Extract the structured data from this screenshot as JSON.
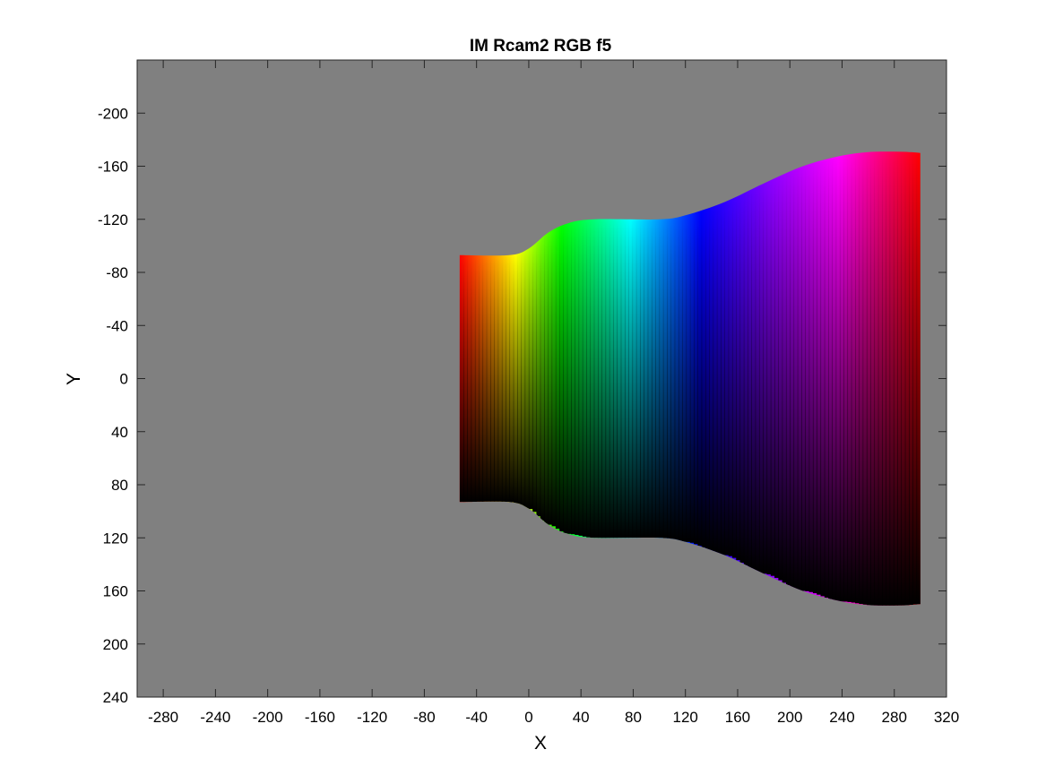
{
  "chart_data": {
    "type": "heatmap",
    "title": "IM Rcam2 RGB f5",
    "xlabel": "X",
    "ylabel": "Y",
    "xlim": [
      -300,
      320
    ],
    "ylim": [
      240,
      -240
    ],
    "y_axis_reversed": true,
    "background_color": "#808080",
    "x_ticks": [
      -280,
      -240,
      -200,
      -160,
      -120,
      -80,
      -40,
      0,
      40,
      80,
      120,
      160,
      200,
      240,
      280,
      320
    ],
    "x_tick_labels": [
      "-280",
      "-240",
      "-200",
      "-160",
      "-120",
      "-80",
      "-40",
      "0",
      "40",
      "80",
      "120",
      "160",
      "200",
      "240",
      "280",
      "320"
    ],
    "y_ticks": [
      -200,
      -160,
      -120,
      -80,
      -40,
      0,
      40,
      80,
      120,
      160,
      200,
      240
    ],
    "y_tick_labels": [
      "-200",
      "-160",
      "-120",
      "-80",
      "-40",
      "0",
      "40",
      "80",
      "120",
      "160",
      "200",
      "240"
    ],
    "grid": false,
    "region": {
      "x_start": -53,
      "x_end": 300,
      "color_stops": [
        {
          "x": -53,
          "color": "#ff0000"
        },
        {
          "x": -10,
          "color": "#ffff00"
        },
        {
          "x": 25,
          "color": "#00ff00"
        },
        {
          "x": 78,
          "color": "#00ffff"
        },
        {
          "x": 132,
          "color": "#0000ff"
        },
        {
          "x": 182,
          "color": "#8000ff"
        },
        {
          "x": 237,
          "color": "#ff00ff"
        },
        {
          "x": 300,
          "color": "#ff0000"
        }
      ],
      "vertical_fade": "color at top edge, black at bottom edge",
      "half_height_profile": [
        {
          "x": -53,
          "h": 93
        },
        {
          "x": -15,
          "h": 93
        },
        {
          "x": 0,
          "h": 98
        },
        {
          "x": 15,
          "h": 110
        },
        {
          "x": 30,
          "h": 117
        },
        {
          "x": 50,
          "h": 120
        },
        {
          "x": 100,
          "h": 120
        },
        {
          "x": 120,
          "h": 123
        },
        {
          "x": 150,
          "h": 133
        },
        {
          "x": 180,
          "h": 147
        },
        {
          "x": 210,
          "h": 160
        },
        {
          "x": 240,
          "h": 168
        },
        {
          "x": 265,
          "h": 171
        },
        {
          "x": 285,
          "h": 171
        },
        {
          "x": 300,
          "h": 170
        }
      ]
    }
  }
}
